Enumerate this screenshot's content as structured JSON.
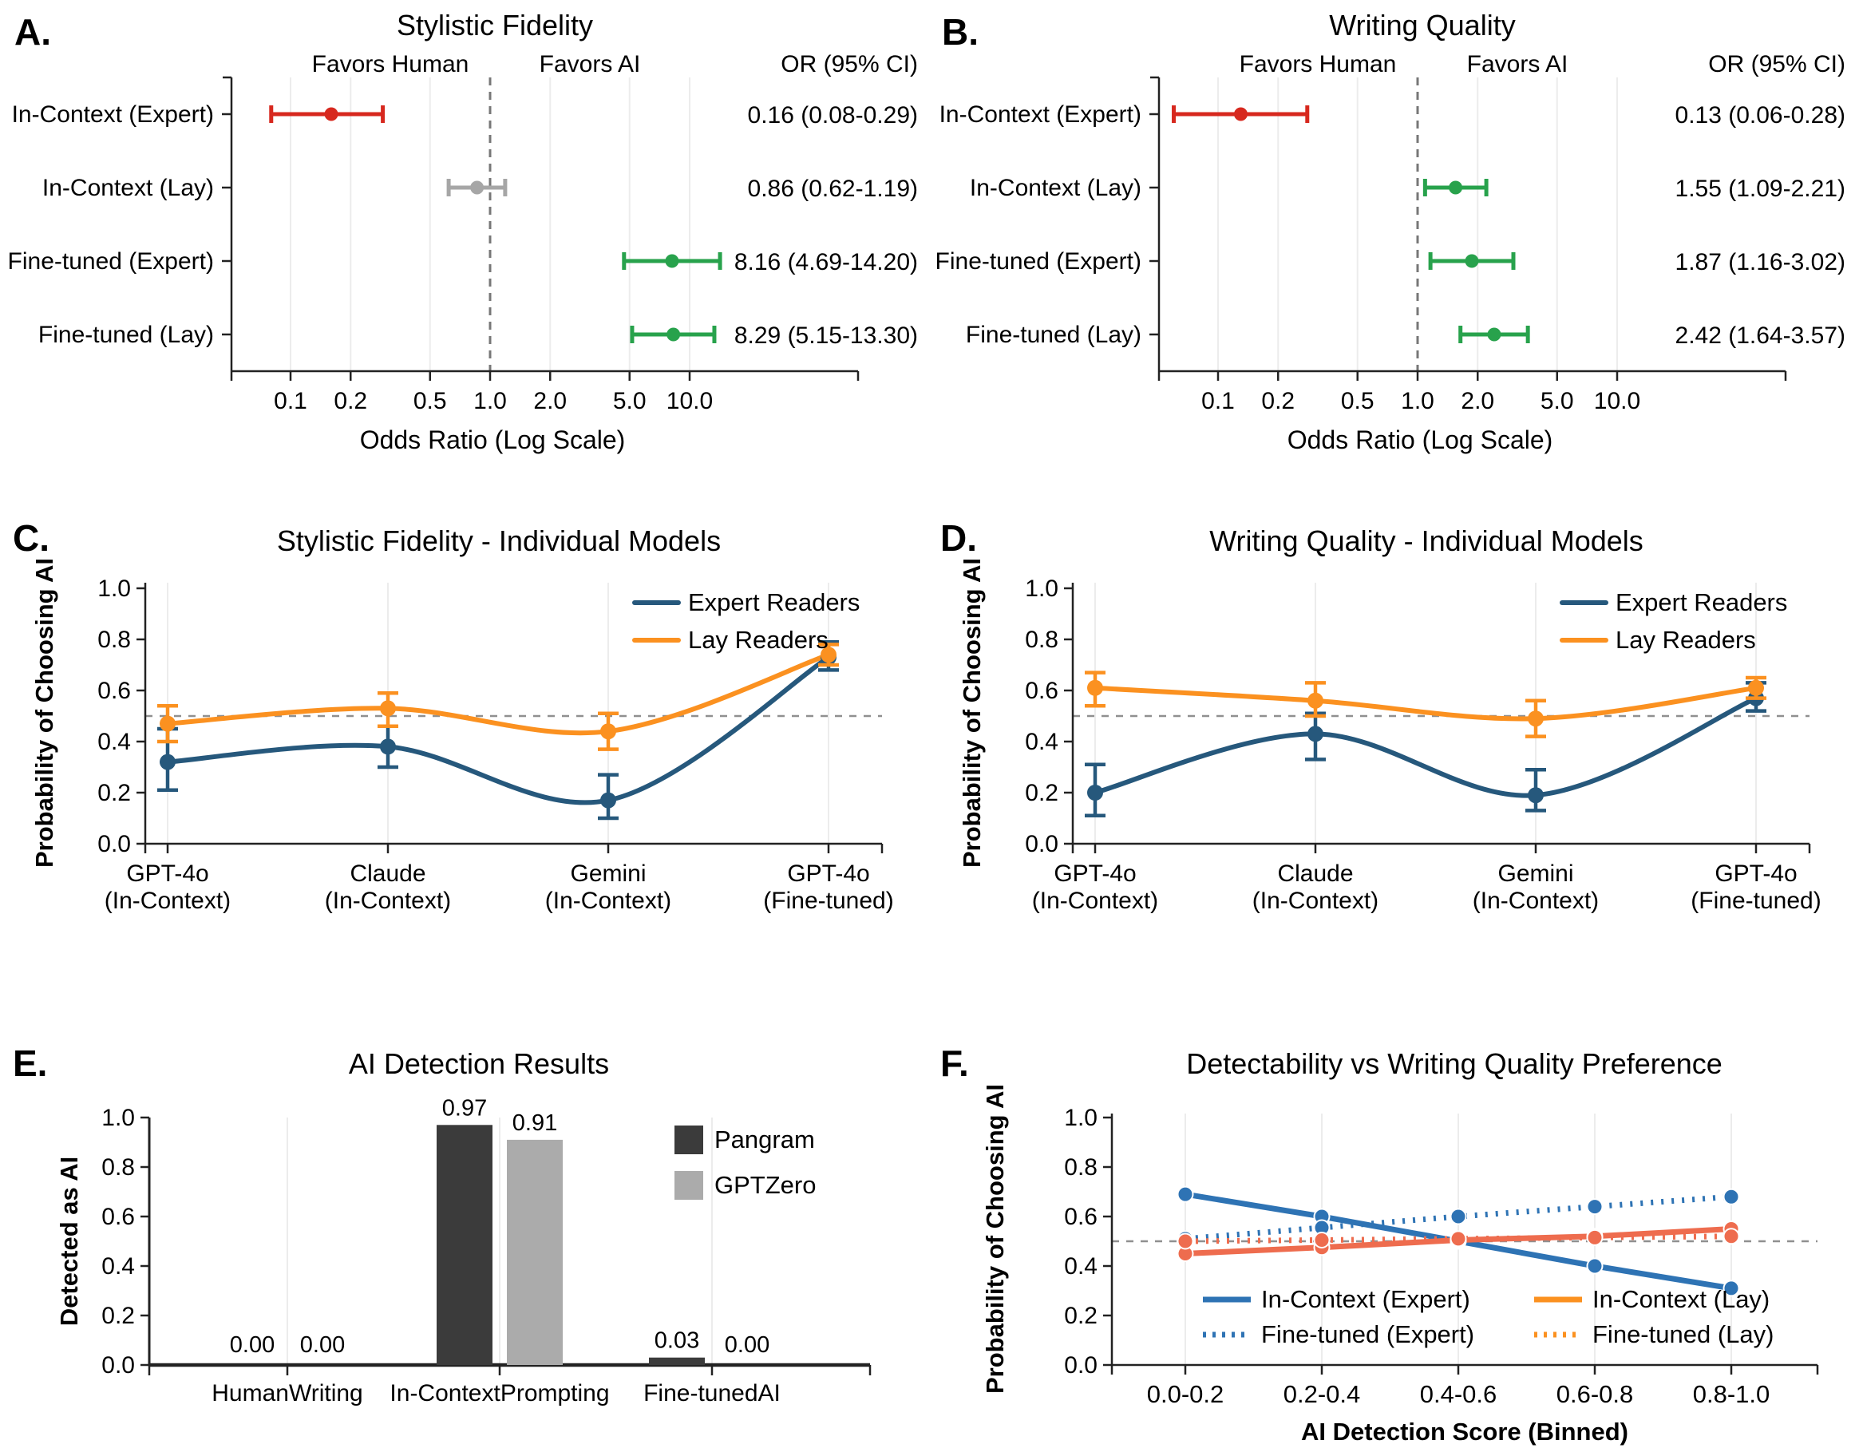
{
  "colors": {
    "red": "#d7281e",
    "green": "#28a24c",
    "gray": "#a6a6a6",
    "expert_blue": "#26587c",
    "lay_orange": "#fb9120",
    "line_blue": "#2e73b4",
    "line_salmon": "#ee6c4e",
    "bar_dark": "#3b3b3b",
    "bar_light": "#ababab",
    "grid": "#ececec",
    "refline": "#8a8a8a",
    "axis": "#222222"
  },
  "chart_data": [
    {
      "id": "A",
      "panel_label": "A.",
      "type": "forest",
      "title": "Stylistic Fidelity",
      "columns": {
        "favors_left": "Favors Human",
        "favors_right": "Favors AI",
        "or_header": "OR (95% CI)"
      },
      "xlabel": "Odds Ratio (Log Scale)",
      "x_scale": "log",
      "xticks": [
        0.1,
        0.2,
        0.5,
        1.0,
        2.0,
        5.0,
        10.0
      ],
      "xtick_labels": [
        "0.1",
        "0.2",
        "0.5",
        "1.0",
        "2.0",
        "5.0",
        "10.0"
      ],
      "refline_x": 1.0,
      "rows": [
        {
          "label": "In-Context (Expert)",
          "or": 0.16,
          "ci_low": 0.08,
          "ci_high": 0.29,
          "or_text": "0.16 (0.08-0.29)",
          "color": "red"
        },
        {
          "label": "In-Context (Lay)",
          "or": 0.86,
          "ci_low": 0.62,
          "ci_high": 1.19,
          "or_text": "0.86 (0.62-1.19)",
          "color": "gray"
        },
        {
          "label": "Fine-tuned (Expert)",
          "or": 8.16,
          "ci_low": 4.69,
          "ci_high": 14.2,
          "or_text": "8.16 (4.69-14.20)",
          "color": "green"
        },
        {
          "label": "Fine-tuned (Lay)",
          "or": 8.29,
          "ci_low": 5.15,
          "ci_high": 13.3,
          "or_text": "8.29 (5.15-13.30)",
          "color": "green"
        }
      ]
    },
    {
      "id": "B",
      "panel_label": "B.",
      "type": "forest",
      "title": "Writing Quality",
      "columns": {
        "favors_left": "Favors Human",
        "favors_right": "Favors AI",
        "or_header": "OR (95% CI)"
      },
      "xlabel": "Odds Ratio (Log Scale)",
      "x_scale": "log",
      "xticks": [
        0.1,
        0.2,
        0.5,
        1.0,
        2.0,
        5.0,
        10.0
      ],
      "xtick_labels": [
        "0.1",
        "0.2",
        "0.5",
        "1.0",
        "2.0",
        "5.0",
        "10.0"
      ],
      "refline_x": 1.0,
      "rows": [
        {
          "label": "In-Context (Expert)",
          "or": 0.13,
          "ci_low": 0.06,
          "ci_high": 0.28,
          "or_text": "0.13 (0.06-0.28)",
          "color": "red"
        },
        {
          "label": "In-Context (Lay)",
          "or": 1.55,
          "ci_low": 1.09,
          "ci_high": 2.21,
          "or_text": "1.55 (1.09-2.21)",
          "color": "green"
        },
        {
          "label": "Fine-tuned (Expert)",
          "or": 1.87,
          "ci_low": 1.16,
          "ci_high": 3.02,
          "or_text": "1.87 (1.16-3.02)",
          "color": "green"
        },
        {
          "label": "Fine-tuned (Lay)",
          "or": 2.42,
          "ci_low": 1.64,
          "ci_high": 3.57,
          "or_text": "2.42 (1.64-3.57)",
          "color": "green"
        }
      ]
    },
    {
      "id": "C",
      "panel_label": "C.",
      "type": "line_ci",
      "title": "Stylistic Fidelity - Individual Models",
      "ylabel": "Probability of Choosing AI",
      "ylim": [
        0,
        1
      ],
      "ytick_labels": [
        "0.0",
        "0.2",
        "0.4",
        "0.6",
        "0.8",
        "1.0"
      ],
      "categories": [
        [
          "GPT-4o",
          "(In-Context)"
        ],
        [
          "Claude",
          "(In-Context)"
        ],
        [
          "Gemini",
          "(In-Context)"
        ],
        [
          "GPT-4o",
          "(Fine-tuned)"
        ]
      ],
      "refline_y": 0.5,
      "legend_position": "top-right",
      "series": [
        {
          "name": "Expert Readers",
          "color": "expert_blue",
          "values": [
            0.32,
            0.38,
            0.17,
            0.73
          ],
          "ci_low": [
            0.21,
            0.3,
            0.1,
            0.68
          ],
          "ci_high": [
            0.45,
            0.46,
            0.27,
            0.79
          ]
        },
        {
          "name": "Lay Readers",
          "color": "lay_orange",
          "values": [
            0.47,
            0.53,
            0.44,
            0.74
          ],
          "ci_low": [
            0.4,
            0.46,
            0.37,
            0.7
          ],
          "ci_high": [
            0.54,
            0.59,
            0.51,
            0.78
          ]
        }
      ]
    },
    {
      "id": "D",
      "panel_label": "D.",
      "type": "line_ci",
      "title": "Writing Quality - Individual Models",
      "ylabel": "Probability of Choosing AI",
      "ylim": [
        0,
        1
      ],
      "ytick_labels": [
        "0.0",
        "0.2",
        "0.4",
        "0.6",
        "0.8",
        "1.0"
      ],
      "categories": [
        [
          "GPT-4o",
          "(In-Context)"
        ],
        [
          "Claude",
          "(In-Context)"
        ],
        [
          "Gemini",
          "(In-Context)"
        ],
        [
          "GPT-4o",
          "(Fine-tuned)"
        ]
      ],
      "refline_y": 0.5,
      "legend_position": "top-right",
      "series": [
        {
          "name": "Expert Readers",
          "color": "expert_blue",
          "values": [
            0.2,
            0.43,
            0.19,
            0.57
          ],
          "ci_low": [
            0.11,
            0.33,
            0.13,
            0.52
          ],
          "ci_high": [
            0.31,
            0.51,
            0.29,
            0.63
          ]
        },
        {
          "name": "Lay Readers",
          "color": "lay_orange",
          "values": [
            0.61,
            0.56,
            0.49,
            0.61
          ],
          "ci_low": [
            0.54,
            0.5,
            0.42,
            0.57
          ],
          "ci_high": [
            0.67,
            0.63,
            0.56,
            0.65
          ]
        }
      ]
    },
    {
      "id": "E",
      "panel_label": "E.",
      "type": "bar",
      "title": "AI Detection Results",
      "ylabel": "Detected as AI",
      "ylim": [
        0,
        1
      ],
      "ytick_labels": [
        "0.0",
        "0.2",
        "0.4",
        "0.6",
        "0.8",
        "1.0"
      ],
      "categories": [
        "HumanWriting",
        "In-ContextPrompting",
        "Fine-tunedAI"
      ],
      "series": [
        {
          "name": "Pangram",
          "color": "bar_dark",
          "values": [
            0.0,
            0.97,
            0.03
          ],
          "value_labels": [
            "0.00",
            "0.97",
            "0.03"
          ]
        },
        {
          "name": "GPTZero",
          "color": "bar_light",
          "values": [
            0.0,
            0.91,
            0.0
          ],
          "value_labels": [
            "0.00",
            "0.91",
            "0.00"
          ]
        }
      ]
    },
    {
      "id": "F",
      "panel_label": "F.",
      "type": "line",
      "title": "Detectability vs Writing Quality Preference",
      "ylabel": "Probability of Choosing AI",
      "xlabel": "AI Detection Score (Binned)",
      "ylim": [
        0,
        1
      ],
      "ytick_labels": [
        "0.0",
        "0.2",
        "0.4",
        "0.6",
        "0.8",
        "1.0"
      ],
      "categories": [
        "0.0-0.2",
        "0.2-0.4",
        "0.4-0.6",
        "0.6-0.8",
        "0.8-1.0"
      ],
      "refline_y": 0.5,
      "legend_position": "bottom-left-2col",
      "series": [
        {
          "name": "In-Context (Expert)",
          "color": "line_blue",
          "legend_color": "line_blue",
          "dash": "solid",
          "values": [
            0.69,
            0.6,
            0.5,
            0.4,
            0.31
          ]
        },
        {
          "name": "Fine-tuned (Expert)",
          "color": "line_blue",
          "legend_color": "line_blue",
          "dash": "dotted",
          "values": [
            0.51,
            0.555,
            0.6,
            0.64,
            0.68
          ]
        },
        {
          "name": "In-Context (Lay)",
          "color": "line_salmon",
          "legend_color": "lay_orange",
          "dash": "solid",
          "values": [
            0.45,
            0.475,
            0.505,
            0.52,
            0.55
          ]
        },
        {
          "name": "Fine-tuned (Lay)",
          "color": "line_salmon",
          "legend_color": "lay_orange",
          "dash": "dotted",
          "values": [
            0.5,
            0.505,
            0.51,
            0.515,
            0.52
          ]
        }
      ]
    }
  ]
}
